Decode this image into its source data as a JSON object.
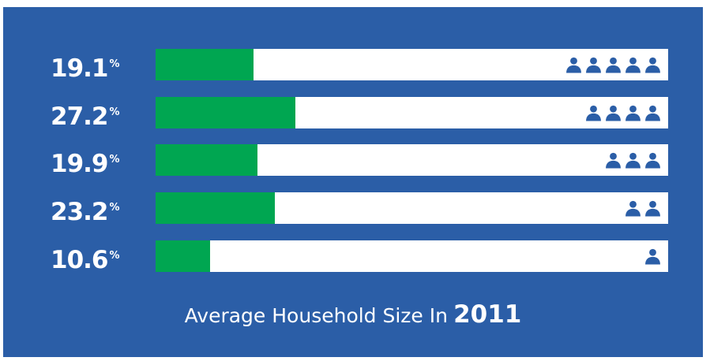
{
  "colors": {
    "background": "#2B5EA7",
    "bar_track": "#FFFFFF",
    "bar_fill": "#00A651",
    "icon": "#2B5EA7",
    "text": "#FFFFFF"
  },
  "icon": "person-icon",
  "percent_sign": "%",
  "chart_data": {
    "type": "bar",
    "orientation": "horizontal",
    "title": "Average Household Size In 2011",
    "title_text": "Average Household Size In",
    "title_year": "2011",
    "unit": "%",
    "categories": [
      "5 persons",
      "4 persons",
      "3 persons",
      "2 persons",
      "1 person"
    ],
    "icon_counts": [
      5,
      4,
      3,
      2,
      1
    ],
    "values": [
      19.1,
      27.2,
      19.9,
      23.2,
      10.6
    ],
    "labels": [
      "19.1",
      "27.2",
      "19.9",
      "23.2",
      "10.6"
    ],
    "xlim": [
      0,
      100
    ],
    "grid": false,
    "legend": "none"
  }
}
